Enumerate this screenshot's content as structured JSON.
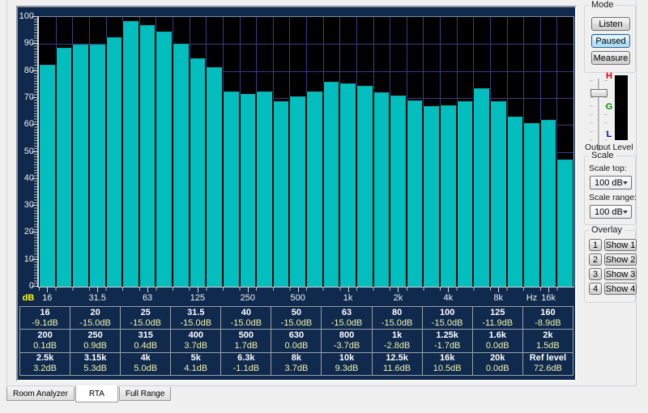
{
  "tabs": {
    "items": [
      {
        "label": "Room Analyzer",
        "active": false
      },
      {
        "label": "RTA",
        "active": true
      },
      {
        "label": "Full Range",
        "active": false
      }
    ]
  },
  "mode": {
    "title": "Mode",
    "buttons": [
      {
        "label": "Listen",
        "active": false
      },
      {
        "label": "Paused",
        "active": true
      },
      {
        "label": "Measure",
        "active": false
      }
    ]
  },
  "output_level": {
    "label": "Output Level",
    "meter_marks": [
      {
        "label": "H",
        "color": "#e00000"
      },
      {
        "label": "G",
        "color": "#009000"
      },
      {
        "label": "L",
        "color": "#0000d8"
      }
    ]
  },
  "scale": {
    "title": "Scale",
    "top_label": "Scale top:",
    "top_value": "100 dB",
    "range_label": "Scale range:",
    "range_value": "100 dB"
  },
  "overlay": {
    "title": "Overlay",
    "items": [
      {
        "num": "1",
        "show": "Show 1"
      },
      {
        "num": "2",
        "show": "Show 2"
      },
      {
        "num": "3",
        "show": "Show 3"
      },
      {
        "num": "4",
        "show": "Show 4"
      }
    ]
  },
  "chart_data": {
    "type": "bar",
    "ylabel": "dB",
    "x_unit": "Hz",
    "ylim": [
      0,
      100
    ],
    "grid": true,
    "legend": false,
    "y_ticks": [
      100,
      90,
      80,
      70,
      60,
      50,
      40,
      30,
      20,
      10,
      0
    ],
    "categories": [
      "16",
      "20",
      "25",
      "31.5",
      "40",
      "50",
      "63",
      "80",
      "100",
      "125",
      "160",
      "200",
      "250",
      "315",
      "400",
      "500",
      "630",
      "800",
      "1k",
      "1.25k",
      "1.6k",
      "2k",
      "2.5k",
      "3.15k",
      "4k",
      "5k",
      "6.3k",
      "8k",
      "10k",
      "12.5k",
      "16k",
      "20k"
    ],
    "values": [
      82.3,
      88.5,
      89.8,
      89.7,
      92.5,
      98.5,
      97.0,
      94.5,
      90.2,
      84.8,
      81.5,
      72.4,
      71.6,
      72.3,
      68.8,
      70.6,
      72.4,
      76.0,
      75.3,
      74.5,
      72.2,
      71.0,
      69.0,
      67.0,
      67.3,
      68.7,
      73.5,
      68.8,
      63.2,
      60.8,
      62.0,
      47.0
    ],
    "x_tick_labels": [
      {
        "label": "16",
        "band": 0
      },
      {
        "label": "31.5",
        "band": 3
      },
      {
        "label": "63",
        "band": 6
      },
      {
        "label": "125",
        "band": 9
      },
      {
        "label": "250",
        "band": 12
      },
      {
        "label": "500",
        "band": 15
      },
      {
        "label": "1k",
        "band": 18
      },
      {
        "label": "2k",
        "band": 21
      },
      {
        "label": "4k",
        "band": 24
      },
      {
        "label": "8k",
        "band": 27
      },
      {
        "label": "Hz",
        "band": 29,
        "unit": true
      },
      {
        "label": "16k",
        "band": 30
      }
    ],
    "colors": {
      "bar": "#02bebe",
      "bar_edge": "#0fa2a2",
      "plot_bg": "#000000",
      "grid": "#3c3c82",
      "panel_bg": "#102a4d",
      "axis": "#d8d8d8",
      "tick_text": "#f0f0f0",
      "unit_text": "#ffff00"
    }
  },
  "band_table": {
    "text_colors": {
      "freq": "#ffffff",
      "value": "#f2f2a8"
    },
    "rows": [
      [
        {
          "f": "16",
          "v": "-9.1dB"
        },
        {
          "f": "20",
          "v": "-15.0dB"
        },
        {
          "f": "25",
          "v": "-15.0dB"
        },
        {
          "f": "31.5",
          "v": "-15.0dB"
        },
        {
          "f": "40",
          "v": "-15.0dB"
        },
        {
          "f": "50",
          "v": "-15.0dB"
        },
        {
          "f": "63",
          "v": "-15.0dB"
        },
        {
          "f": "80",
          "v": "-15.0dB"
        },
        {
          "f": "100",
          "v": "-15.0dB"
        },
        {
          "f": "125",
          "v": "-11.9dB"
        },
        {
          "f": "160",
          "v": "-8.9dB"
        }
      ],
      [
        {
          "f": "200",
          "v": "0.1dB"
        },
        {
          "f": "250",
          "v": "0.9dB"
        },
        {
          "f": "315",
          "v": "0.4dB"
        },
        {
          "f": "400",
          "v": "3.7dB"
        },
        {
          "f": "500",
          "v": "1.7dB"
        },
        {
          "f": "630",
          "v": "0.0dB"
        },
        {
          "f": "800",
          "v": "-3.7dB"
        },
        {
          "f": "1k",
          "v": "-2.8dB"
        },
        {
          "f": "1.25k",
          "v": "-1.7dB"
        },
        {
          "f": "1.6k",
          "v": "0.0dB"
        },
        {
          "f": "2k",
          "v": "1.5dB"
        }
      ],
      [
        {
          "f": "2.5k",
          "v": "3.2dB"
        },
        {
          "f": "3.15k",
          "v": "5.3dB"
        },
        {
          "f": "4k",
          "v": "5.0dB"
        },
        {
          "f": "5k",
          "v": "4.1dB"
        },
        {
          "f": "6.3k",
          "v": "-1.1dB"
        },
        {
          "f": "8k",
          "v": "3.7dB"
        },
        {
          "f": "10k",
          "v": "9.3dB"
        },
        {
          "f": "12.5k",
          "v": "11.6dB"
        },
        {
          "f": "16k",
          "v": "10.5dB"
        },
        {
          "f": "20k",
          "v": "0.0dB"
        },
        {
          "f": "Ref level",
          "v": "72.6dB"
        }
      ]
    ]
  }
}
